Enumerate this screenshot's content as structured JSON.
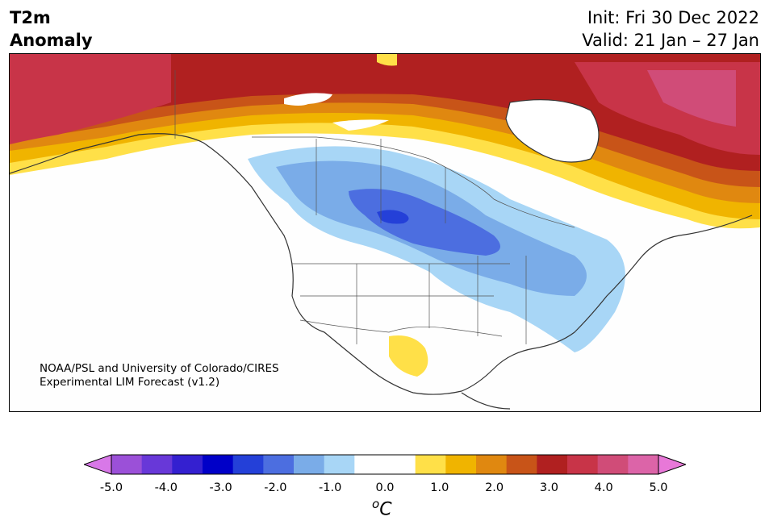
{
  "header": {
    "title_line1": "T2m",
    "title_line2": "Anomaly",
    "init": "Init: Fri 30 Dec 2022",
    "valid": "Valid: 21 Jan – 27 Jan"
  },
  "map": {
    "region": "North America",
    "credit_line1": "NOAA/PSL and University of Colorado/CIRES",
    "credit_line2": "Experimental LIM Forecast (v1.2)"
  },
  "colorbar": {
    "units_base": "C",
    "units_sup": "o",
    "ticks": [
      "-5.0",
      "-4.0",
      "-3.0",
      "-2.0",
      "-1.0",
      "0.0",
      "1.0",
      "2.0",
      "3.0",
      "4.0",
      "5.0"
    ],
    "colors": [
      "#9b50d8",
      "#6838d8",
      "#3420d0",
      "#0000c8",
      "#2440d8",
      "#4c6ee0",
      "#7aace8",
      "#a8d6f6",
      "#ffffff",
      "#ffffff",
      "#ffe048",
      "#f0b400",
      "#e08810",
      "#c85418",
      "#b02020",
      "#c83448",
      "#d04c78",
      "#dc64a8"
    ],
    "under_color": "#d878e8",
    "over_color": "#e878d8"
  }
}
